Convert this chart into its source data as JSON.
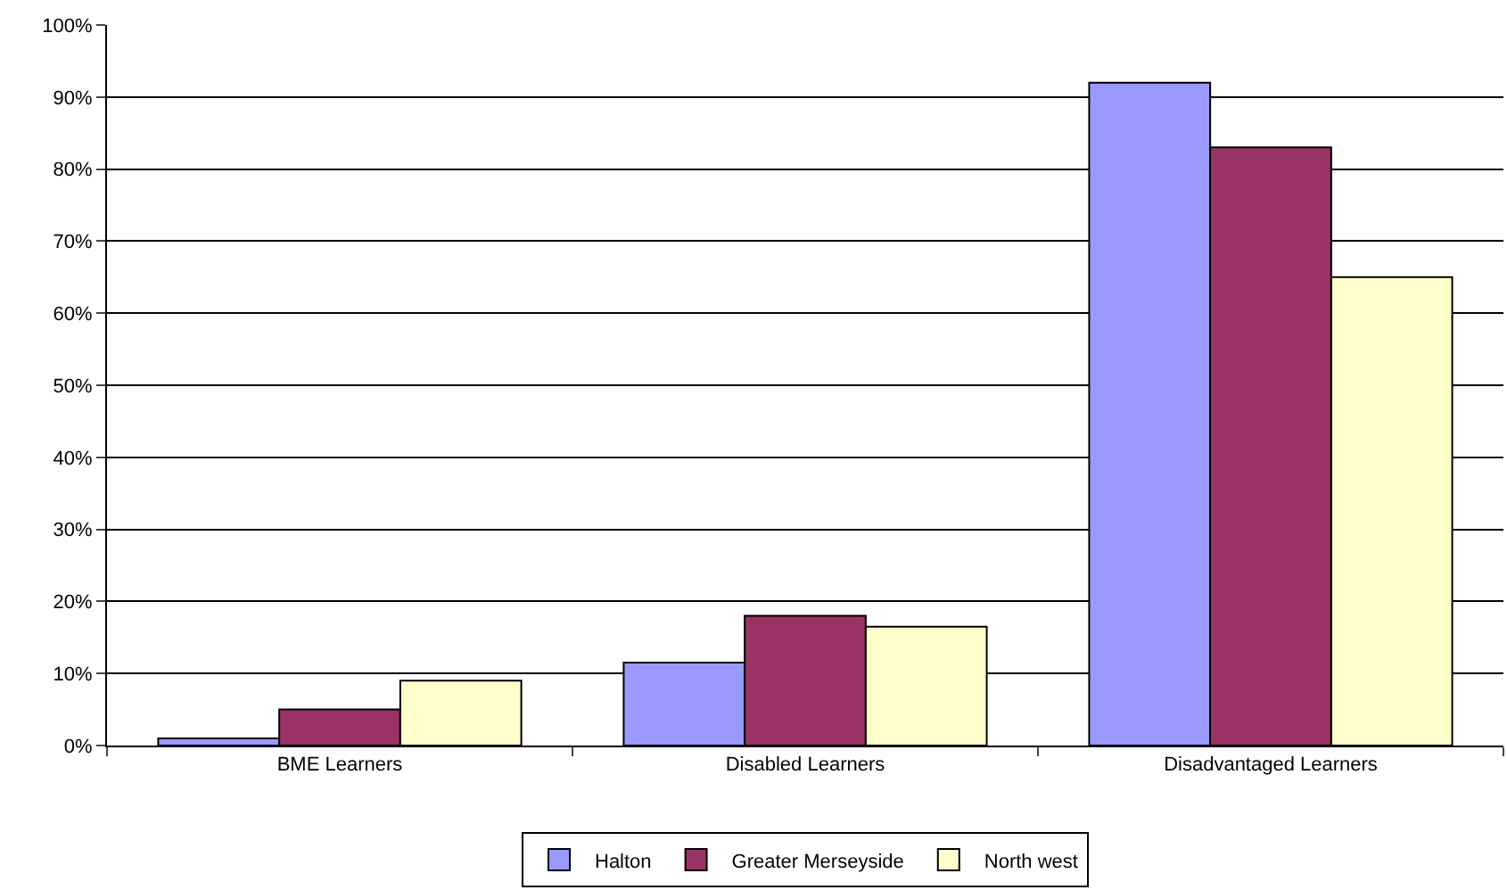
{
  "chart_data": {
    "type": "bar",
    "categories": [
      "BME Learners",
      "Disabled Learners",
      "Disadvantaged Learners"
    ],
    "series": [
      {
        "name": "Halton",
        "color": "#9999ff",
        "values": [
          1,
          11.5,
          92
        ]
      },
      {
        "name": "Greater Merseyside",
        "color": "#993366",
        "values": [
          5,
          18,
          83
        ]
      },
      {
        "name": "North west",
        "color": "#ffffcc",
        "values": [
          9,
          16.5,
          65
        ]
      }
    ],
    "ylim": [
      0,
      100
    ],
    "yticks": [
      {
        "value": 0,
        "label": "0%"
      },
      {
        "value": 10,
        "label": "10%"
      },
      {
        "value": 20,
        "label": "20%"
      },
      {
        "value": 30,
        "label": "30%"
      },
      {
        "value": 40,
        "label": "40%"
      },
      {
        "value": 50,
        "label": "50%"
      },
      {
        "value": 60,
        "label": "60%"
      },
      {
        "value": 70,
        "label": "70%"
      },
      {
        "value": 80,
        "label": "80%"
      },
      {
        "value": 90,
        "label": "90%"
      },
      {
        "value": 100,
        "label": "100%"
      }
    ],
    "grid": "y",
    "legend": "bottom"
  }
}
